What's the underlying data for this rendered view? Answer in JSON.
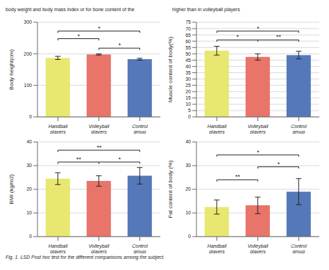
{
  "annotations": [
    "body weight and body mass index or for bone content of the",
    "higher than in volleyball players",
    "Fig. 1. LSD Post hoc test for the different comparisons among the subject."
  ],
  "chart_data": [
    {
      "type": "bar",
      "ylabel": "Body height(cm)",
      "categories": [
        "Handball players",
        "Volleyball players",
        "Control group"
      ],
      "values": [
        187,
        198,
        183
      ],
      "errors": [
        5,
        2,
        3
      ],
      "colors": [
        "#e8e870",
        "#e8746a",
        "#5578b8"
      ],
      "ylim": [
        0,
        300
      ],
      "yticks": [
        0,
        100,
        200,
        300
      ],
      "grid": true,
      "annotations": [
        {
          "text": "*",
          "from": "Handball players",
          "to": "Control group",
          "y": 272
        },
        {
          "text": "*",
          "from": "Handball players",
          "to": "Volleyball players",
          "y": 248
        },
        {
          "text": "*",
          "from": "Volleyball players",
          "to": "Control group",
          "y": 218
        }
      ]
    },
    {
      "type": "bar",
      "ylabel": "Muscle content of body(%)",
      "categories": [
        "Handball players",
        "Volleyball players",
        "Control group"
      ],
      "values": [
        52.5,
        47.5,
        49.0
      ],
      "errors": [
        3.5,
        2.5,
        3.0
      ],
      "colors": [
        "#e8e870",
        "#e8746a",
        "#5578b8"
      ],
      "ylim": [
        0,
        75
      ],
      "yticks": [
        0,
        5,
        10,
        15,
        20,
        25,
        30,
        35,
        40,
        45,
        50,
        55,
        60,
        65,
        70,
        75
      ],
      "grid": true,
      "annotations": [
        {
          "text": "*",
          "from": "Handball players",
          "to": "Control group",
          "y": 68
        },
        {
          "text": "*",
          "from": "Handball players",
          "to": "Volleyball players",
          "y": 61
        },
        {
          "text": "**",
          "from": "Volleyball players",
          "to": "Control group",
          "y": 61
        }
      ]
    },
    {
      "type": "bar",
      "ylabel": "BMI (kg/m2)",
      "categories": [
        "Handball players",
        "Volleyball players",
        "Control group"
      ],
      "values": [
        24.5,
        23.5,
        25.7
      ],
      "errors": [
        2.5,
        2.2,
        3.5
      ],
      "colors": [
        "#e8e870",
        "#e8746a",
        "#5578b8"
      ],
      "ylim": [
        0,
        40
      ],
      "yticks": [
        0,
        10,
        20,
        30,
        40
      ],
      "grid": true,
      "annotations": [
        {
          "text": "**",
          "from": "Handball players",
          "to": "Control group",
          "y": 36.5
        },
        {
          "text": "**",
          "from": "Handball players",
          "to": "Volleyball players",
          "y": 31.5
        },
        {
          "text": "*",
          "from": "Volleyball players",
          "to": "Control group",
          "y": 31.5
        }
      ]
    },
    {
      "type": "bar",
      "ylabel": "Fat content of body (%)",
      "categories": [
        "Handball players",
        "Volleyball players",
        "Control group"
      ],
      "values": [
        12.5,
        13.2,
        19.0
      ],
      "errors": [
        3.0,
        3.5,
        5.5
      ],
      "colors": [
        "#e8e870",
        "#e8746a",
        "#5578b8"
      ],
      "ylim": [
        0,
        40
      ],
      "yticks": [
        0,
        10,
        20,
        30,
        40
      ],
      "grid": true,
      "annotations": [
        {
          "text": "*",
          "from": "Handball players",
          "to": "Control group",
          "y": 34.5
        },
        {
          "text": "*",
          "from": "Volleyball players",
          "to": "Control group",
          "y": 29.5
        },
        {
          "text": "**",
          "from": "Handball players",
          "to": "Volleyball players",
          "y": 24.0
        }
      ]
    }
  ]
}
